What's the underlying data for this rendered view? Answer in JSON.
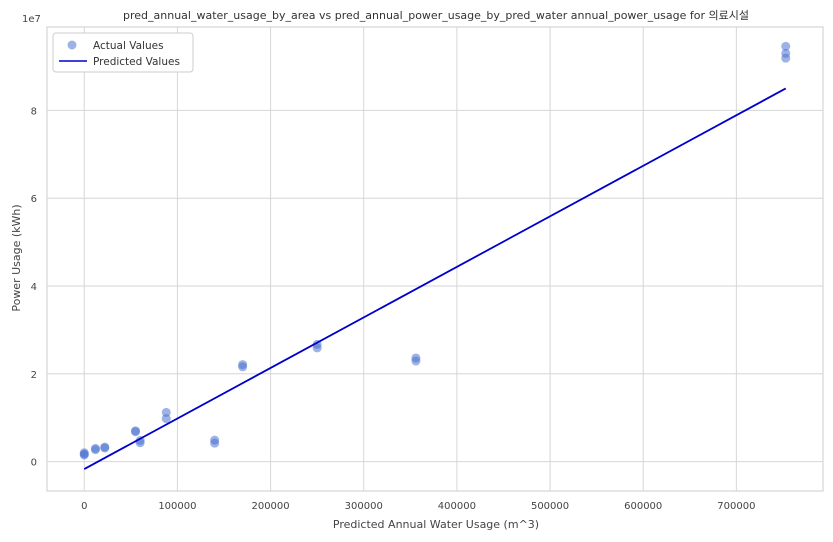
{
  "chart_data": {
    "type": "scatter",
    "title": "pred_annual_water_usage_by_area vs pred_annual_power_usage_by_pred_water annual_power_usage for 의료시설",
    "xlabel": "Predicted Annual Water Usage (m^3)",
    "ylabel": "Power Usage (kWh)",
    "y_offset_label": "1e7",
    "xlim": [
      -40000,
      793000
    ],
    "ylim": [
      -6700000,
      99000000
    ],
    "x_ticks": [
      0,
      100000,
      200000,
      300000,
      400000,
      500000,
      600000,
      700000
    ],
    "x_tick_labels": [
      "0",
      "100000",
      "200000",
      "300000",
      "400000",
      "500000",
      "600000",
      "700000"
    ],
    "y_ticks": [
      0,
      20000000,
      40000000,
      60000000,
      80000000
    ],
    "y_tick_labels": [
      "0",
      "2",
      "4",
      "6",
      "8"
    ],
    "grid": true,
    "legend_position": "top-left",
    "series": [
      {
        "name": "Actual Values",
        "kind": "scatter",
        "color": "#4c72d0",
        "points": [
          [
            0,
            2000000
          ],
          [
            0,
            1700000
          ],
          [
            0,
            1500000
          ],
          [
            12000,
            3000000
          ],
          [
            12000,
            2700000
          ],
          [
            22000,
            3300000
          ],
          [
            22000,
            3100000
          ],
          [
            55000,
            7000000
          ],
          [
            55000,
            6800000
          ],
          [
            60000,
            4800000
          ],
          [
            60000,
            4300000
          ],
          [
            88000,
            11200000
          ],
          [
            88000,
            9800000
          ],
          [
            140000,
            4900000
          ],
          [
            140000,
            4200000
          ],
          [
            170000,
            22100000
          ],
          [
            170000,
            21600000
          ],
          [
            250000,
            26700000
          ],
          [
            250000,
            25900000
          ],
          [
            356000,
            23600000
          ],
          [
            356000,
            22900000
          ],
          [
            753000,
            94600000
          ],
          [
            753000,
            93000000
          ],
          [
            753000,
            91900000
          ]
        ]
      },
      {
        "name": "Predicted Values",
        "kind": "line",
        "color": "#0000cc",
        "points": [
          [
            0,
            -1700000
          ],
          [
            753000,
            85000000
          ]
        ]
      }
    ]
  }
}
